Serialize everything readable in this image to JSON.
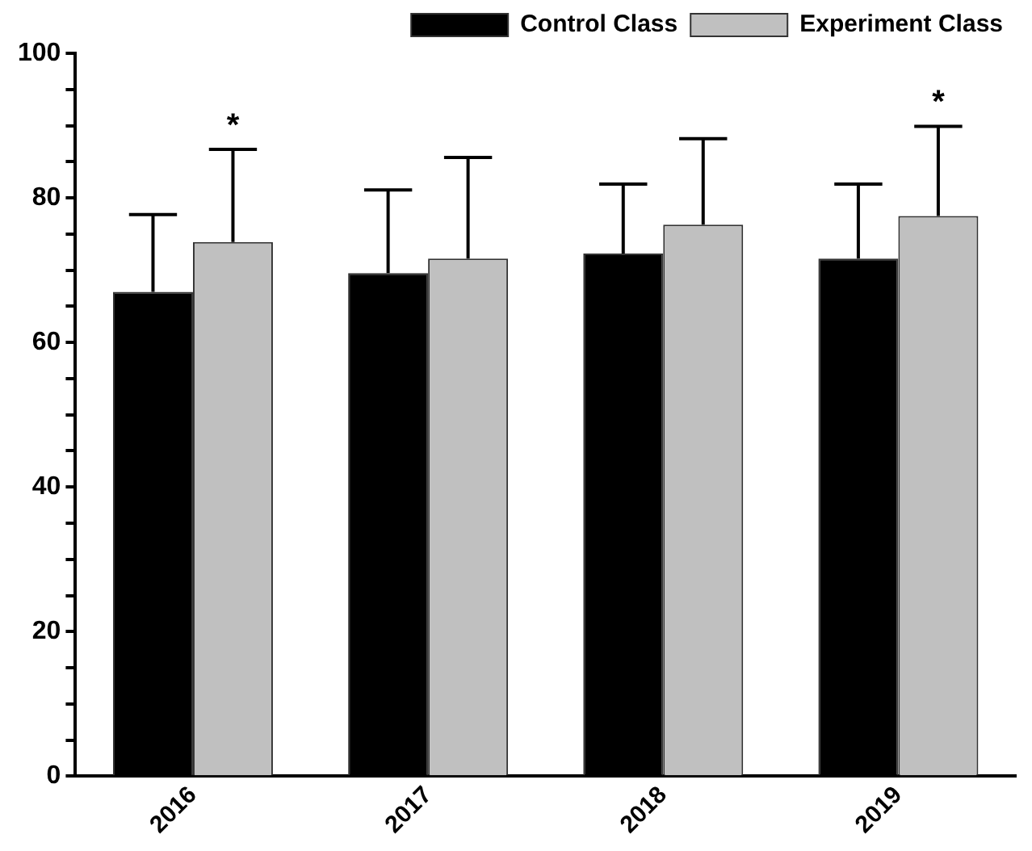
{
  "chart_data": {
    "type": "bar",
    "categories": [
      "2016",
      "2017",
      "2018",
      "2019"
    ],
    "series": [
      {
        "name": "Control Class",
        "color": "#000000",
        "values": [
          67.0,
          69.6,
          72.3,
          71.6
        ],
        "errors": [
          [
            67.0,
            77.7
          ],
          [
            69.6,
            81.1
          ],
          [
            72.3,
            81.9
          ],
          [
            71.6,
            81.9
          ]
        ]
      },
      {
        "name": "Experiment Class",
        "color": "#c0c0c0",
        "values": [
          73.9,
          71.6,
          76.3,
          77.5
        ],
        "errors": [
          [
            73.9,
            86.7
          ],
          [
            71.6,
            85.6
          ],
          [
            76.3,
            88.2
          ],
          [
            77.5,
            89.9
          ]
        ]
      }
    ],
    "ylim": [
      0,
      100
    ],
    "yticks": [
      0,
      {
        "value": 5,
        "label": null
      },
      {
        "value": 10,
        "label": null
      },
      {
        "value": 15,
        "label": null
      },
      20,
      {
        "value": 25,
        "label": null
      },
      {
        "value": 30,
        "label": null
      },
      {
        "value": 35,
        "label": null
      },
      40,
      {
        "value": 45,
        "label": null
      },
      {
        "value": 50,
        "label": null
      },
      {
        "value": 55,
        "label": null
      },
      60,
      {
        "value": 65,
        "label": null
      },
      {
        "value": 70,
        "label": null
      },
      {
        "value": 75,
        "label": null
      },
      80,
      {
        "value": 85,
        "label": null
      },
      {
        "value": 90,
        "label": null
      },
      {
        "value": 95,
        "label": null
      },
      100
    ],
    "annotations": [
      "*",
      "*"
    ],
    "grid": false,
    "legend": "top right"
  }
}
